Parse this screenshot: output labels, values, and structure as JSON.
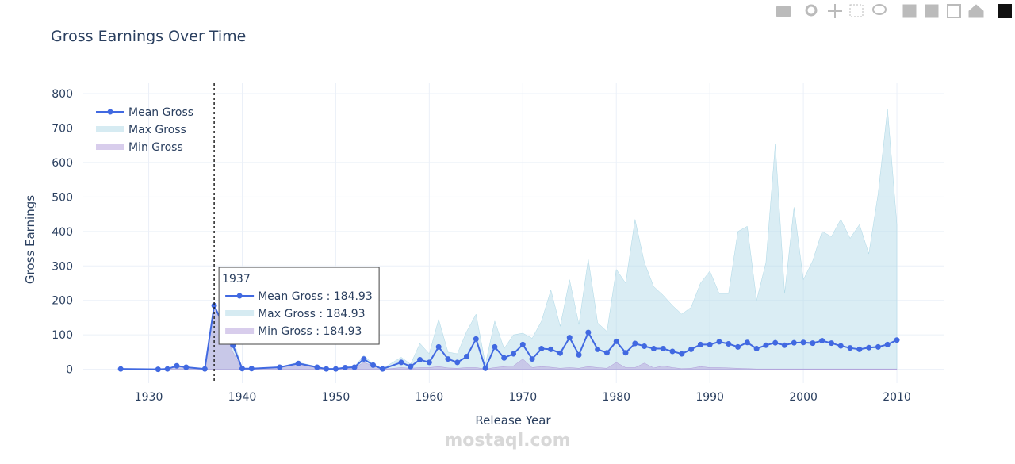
{
  "chart_data": {
    "type": "line",
    "title": "Gross Earnings Over Time",
    "x_label": "Release Year",
    "y_label": "Gross Earnings",
    "x": [
      1927,
      1931,
      1932,
      1933,
      1934,
      1936,
      1937,
      1939,
      1940,
      1941,
      1944,
      1946,
      1948,
      1949,
      1950,
      1951,
      1952,
      1953,
      1954,
      1955,
      1957,
      1958,
      1959,
      1960,
      1961,
      1962,
      1963,
      1964,
      1965,
      1966,
      1967,
      1968,
      1969,
      1970,
      1971,
      1972,
      1973,
      1974,
      1975,
      1976,
      1977,
      1978,
      1979,
      1980,
      1981,
      1982,
      1983,
      1984,
      1985,
      1986,
      1987,
      1988,
      1989,
      1990,
      1991,
      1992,
      1993,
      1994,
      1995,
      1996,
      1997,
      1998,
      1999,
      2000,
      2001,
      2002,
      2003,
      2004,
      2005,
      2006,
      2007,
      2008,
      2009,
      2010
    ],
    "series": [
      {
        "name": "Max Gross",
        "color": "#add8e6",
        "fill": "tozeroy",
        "values": [
          1,
          0,
          1,
          12,
          7,
          1,
          184.93,
          90,
          3,
          3,
          7,
          20,
          8,
          2,
          2,
          7,
          8,
          40,
          15,
          2,
          35,
          15,
          75,
          45,
          145,
          50,
          45,
          110,
          160,
          15,
          140,
          60,
          100,
          105,
          90,
          140,
          230,
          125,
          260,
          130,
          320,
          135,
          110,
          290,
          250,
          435,
          310,
          240,
          215,
          185,
          160,
          180,
          250,
          285,
          220,
          220,
          400,
          415,
          200,
          310,
          655,
          220,
          470,
          260,
          315,
          400,
          385,
          435,
          380,
          420,
          335,
          510,
          755,
          420
        ]
      },
      {
        "name": "Min Gross",
        "color": "#b19cd9",
        "fill": "tozeroy",
        "values": [
          1,
          0,
          1,
          8,
          5,
          1,
          184.93,
          50,
          1,
          1,
          5,
          15,
          4,
          0,
          0,
          3,
          4,
          20,
          10,
          0,
          5,
          3,
          5,
          5,
          8,
          4,
          3,
          5,
          5,
          1,
          5,
          8,
          10,
          30,
          5,
          8,
          6,
          3,
          5,
          3,
          8,
          5,
          3,
          20,
          5,
          5,
          18,
          4,
          10,
          5,
          2,
          3,
          8,
          5,
          5,
          4,
          3,
          2,
          1,
          1,
          1,
          1,
          1,
          1,
          1,
          1,
          1,
          1,
          1,
          1,
          1,
          1,
          1,
          1
        ]
      },
      {
        "name": "Mean Gross",
        "color": "#4169e1",
        "mode": "lines+markers",
        "values": [
          1,
          0,
          1,
          10,
          6,
          1,
          184.93,
          70,
          2,
          2,
          6,
          17,
          6,
          1,
          1,
          5,
          6,
          30,
          12,
          1,
          20,
          8,
          28,
          20,
          65,
          30,
          20,
          37,
          88,
          3,
          65,
          33,
          45,
          72,
          30,
          60,
          58,
          47,
          92,
          42,
          107,
          58,
          48,
          81,
          48,
          75,
          67,
          60,
          60,
          52,
          45,
          58,
          72,
          72,
          80,
          74,
          65,
          78,
          60,
          70,
          77,
          70,
          77,
          78,
          76,
          83,
          76,
          68,
          62,
          58,
          63,
          65,
          72,
          85
        ]
      }
    ],
    "legend_order": [
      2,
      0,
      1
    ],
    "xlim": [
      1923,
      2015
    ],
    "ylim": [
      -40,
      830
    ],
    "xticks": [
      1930,
      1940,
      1950,
      1960,
      1970,
      1980,
      1990,
      2000,
      2010
    ],
    "yticks": [
      0,
      100,
      200,
      300,
      400,
      500,
      600,
      700,
      800
    ],
    "grid": true,
    "legend": "upper left",
    "hover": {
      "x": 1937,
      "rows": [
        "Mean Gross : 184.93",
        "Max Gross : 184.93",
        "Min Gross : 184.93"
      ],
      "row_series": [
        2,
        0,
        1
      ]
    },
    "watermark": "mostaql.com"
  }
}
